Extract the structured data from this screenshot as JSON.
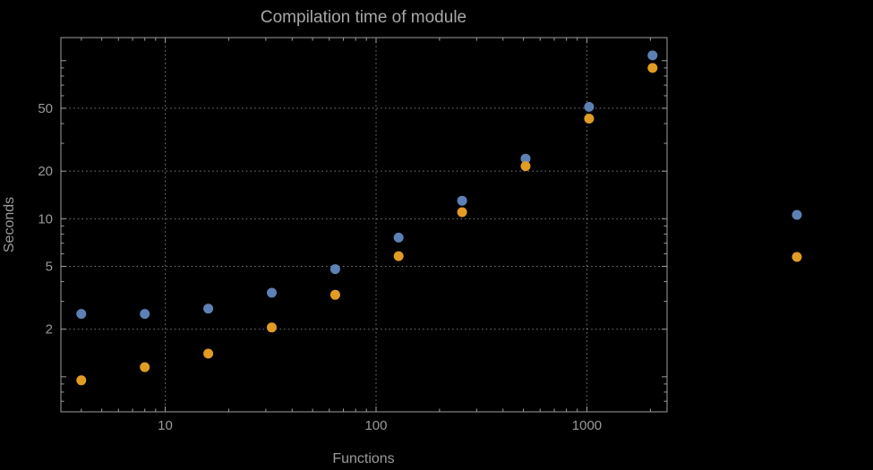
{
  "chart_data": {
    "type": "scatter",
    "title": "Compilation time of module",
    "xlabel": "Functions",
    "ylabel": "Seconds",
    "xscale": "log",
    "yscale": "log",
    "xlim": [
      3.2,
      2400
    ],
    "ylim": [
      0.6,
      140
    ],
    "x_ticks": [
      10,
      100,
      1000
    ],
    "y_ticks": [
      2,
      5,
      10,
      20,
      50
    ],
    "grid": "dotted",
    "x": [
      4,
      8,
      16,
      32,
      64,
      128,
      256,
      512,
      1024,
      2048
    ],
    "series": [
      {
        "name": "blue",
        "color": "#5e81b5",
        "values": [
          2.5,
          2.5,
          2.7,
          3.4,
          4.8,
          7.6,
          13,
          24,
          51,
          108
        ]
      },
      {
        "name": "orange",
        "color": "#e19c24",
        "values": [
          0.95,
          1.15,
          1.4,
          2.05,
          3.3,
          5.8,
          11,
          21.5,
          43,
          90
        ]
      }
    ],
    "legend": {
      "position": "right-outside",
      "entries": [
        {
          "series": "blue",
          "color": "#5e81b5",
          "label": ""
        },
        {
          "series": "orange",
          "color": "#e19c24",
          "label": ""
        }
      ]
    },
    "colors": {
      "background": "#000000",
      "frame": "#9e9e9e",
      "grid": "#7d7d7d",
      "text": "#9a9a9a"
    }
  }
}
